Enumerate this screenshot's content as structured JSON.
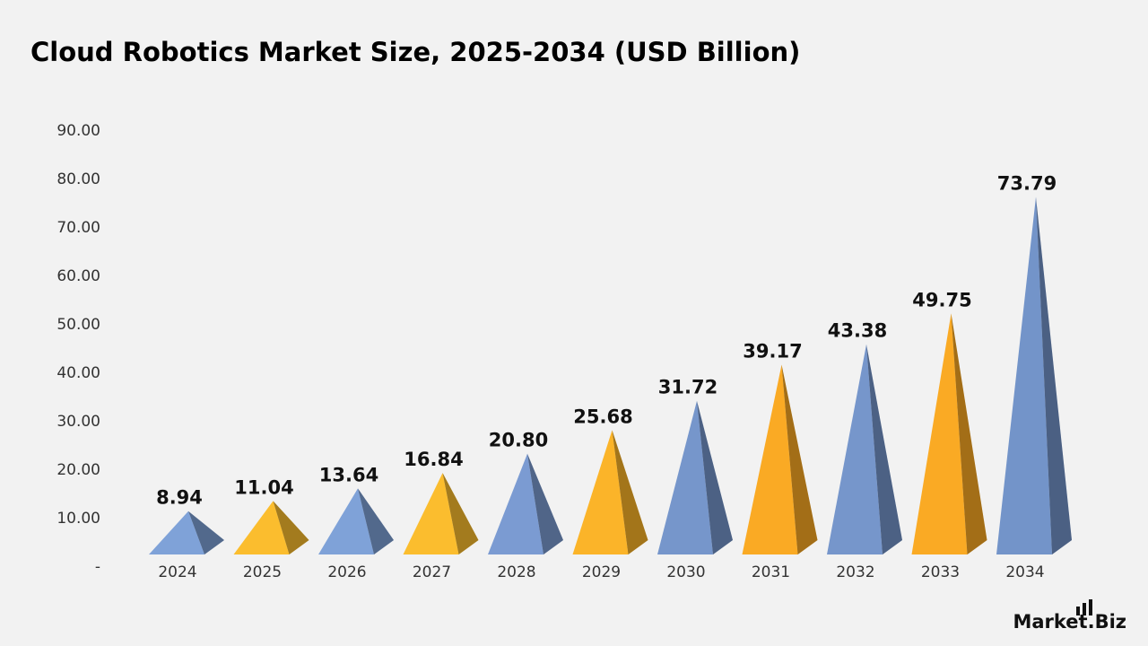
{
  "chart_data": {
    "type": "pyramid",
    "title": "Cloud Robotics Market Size, 2025-2034 (USD Billion)",
    "categories": [
      "2024",
      "2025",
      "2026",
      "2027",
      "2028",
      "2029",
      "2030",
      "2031",
      "2032",
      "2033",
      "2034"
    ],
    "values": [
      8.94,
      11.04,
      13.64,
      16.84,
      20.8,
      25.68,
      31.72,
      39.17,
      43.38,
      49.75,
      73.79
    ],
    "value_labels": [
      "8.94",
      "11.04",
      "13.64",
      "16.84",
      "20.80",
      "25.68",
      "31.72",
      "39.17",
      "43.38",
      "49.75",
      "73.79"
    ],
    "colors": [
      "#7fa2d8",
      "#fbbd2e",
      "#7fa2d8",
      "#fbbd2e",
      "#7b9bd2",
      "#fbb429",
      "#7696cb",
      "#faaa24",
      "#7696cb",
      "#faaa24",
      "#7394c9"
    ],
    "ylim": [
      0,
      90
    ],
    "yticks": [
      {
        "value": 0,
        "label": "-"
      },
      {
        "value": 10,
        "label": "10.00"
      },
      {
        "value": 20,
        "label": "20.00"
      },
      {
        "value": 30,
        "label": "30.00"
      },
      {
        "value": 40,
        "label": "40.00"
      },
      {
        "value": 50,
        "label": "50.00"
      },
      {
        "value": 60,
        "label": "60.00"
      },
      {
        "value": 70,
        "label": "70.00"
      },
      {
        "value": 80,
        "label": "80.00"
      },
      {
        "value": 90,
        "label": "90.00"
      }
    ],
    "grid": false
  },
  "brand": "Market.Biz"
}
